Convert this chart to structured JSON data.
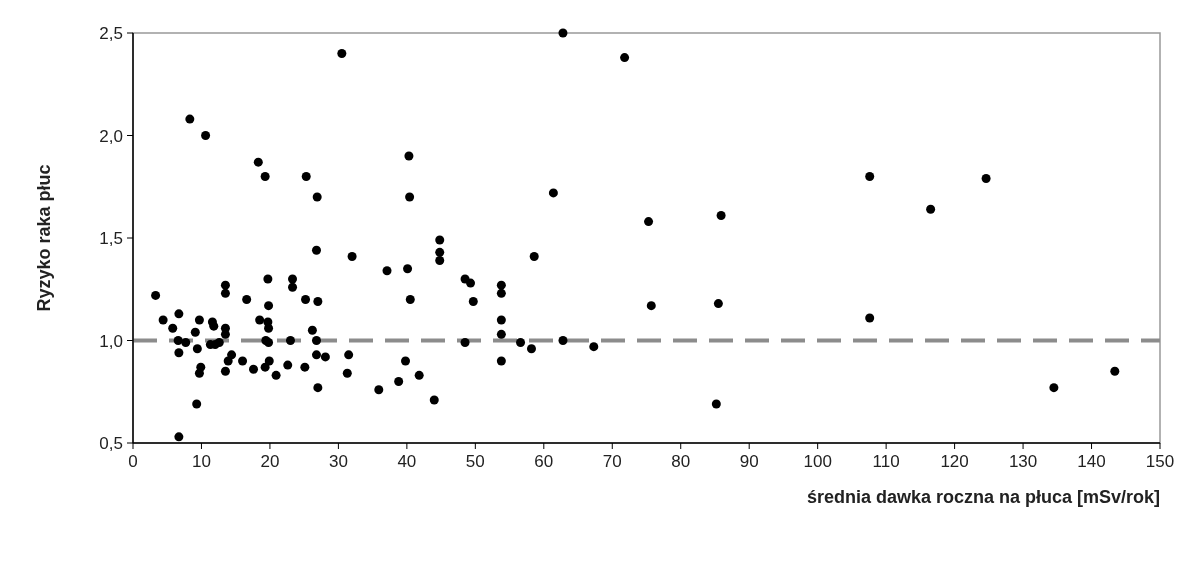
{
  "chart_data": {
    "type": "scatter",
    "xlabel": "średnia dawka roczna na płuca [mSv/rok]",
    "ylabel": "Ryzyko raka płuc",
    "x": [
      3.3,
      4.4,
      5.8,
      6.7,
      6.6,
      7.7,
      6.7,
      6.7,
      8.3,
      9.1,
      9.7,
      9.4,
      9.9,
      9.7,
      9.3,
      10.6,
      11.6,
      11.8,
      11.3,
      12.0,
      12.6,
      13.5,
      13.5,
      13.5,
      13.5,
      14.4,
      13.9,
      13.5,
      16.0,
      16.6,
      17.6,
      18.3,
      19.3,
      18.5,
      19.7,
      19.8,
      19.7,
      19.8,
      19.4,
      19.8,
      19.9,
      19.3,
      20.9,
      22.6,
      23.0,
      23.3,
      23.3,
      25.1,
      25.2,
      25.3,
      26.2,
      26.9,
      26.8,
      27.0,
      26.8,
      26.8,
      28.1,
      27.0,
      30.5,
      32.0,
      31.5,
      31.3,
      35.9,
      37.1,
      38.8,
      39.8,
      40.3,
      40.4,
      40.1,
      40.5,
      41.8,
      44.0,
      44.8,
      44.8,
      44.8,
      48.5,
      49.3,
      49.7,
      48.5,
      53.8,
      53.8,
      53.8,
      53.8,
      53.8,
      56.6,
      58.2,
      58.6,
      61.4,
      62.8,
      62.8,
      67.3,
      71.8,
      75.3,
      75.7,
      85.9,
      85.5,
      85.2,
      107.6,
      107.6,
      116.5,
      124.6,
      134.5,
      143.4
    ],
    "values": [
      1.22,
      1.1,
      1.06,
      1.13,
      1.0,
      0.99,
      0.94,
      0.53,
      2.08,
      1.04,
      1.1,
      0.96,
      0.87,
      0.84,
      0.69,
      2.0,
      1.09,
      1.07,
      0.98,
      0.98,
      0.99,
      1.27,
      1.23,
      1.06,
      1.03,
      0.93,
      0.9,
      0.85,
      0.9,
      1.2,
      0.86,
      1.87,
      1.8,
      1.1,
      1.3,
      1.17,
      1.09,
      1.06,
      1.0,
      0.99,
      0.9,
      0.87,
      0.83,
      0.88,
      1.0,
      1.3,
      1.26,
      0.87,
      1.2,
      1.8,
      1.05,
      1.7,
      1.44,
      1.19,
      1.0,
      0.93,
      0.92,
      0.77,
      2.4,
      1.41,
      0.93,
      0.84,
      0.76,
      1.34,
      0.8,
      0.9,
      1.9,
      1.7,
      1.35,
      1.2,
      0.83,
      0.71,
      1.49,
      1.43,
      1.39,
      1.3,
      1.28,
      1.19,
      0.99,
      1.27,
      1.23,
      1.1,
      1.03,
      0.9,
      0.99,
      0.96,
      1.41,
      1.72,
      2.5,
      1.0,
      0.97,
      2.38,
      1.58,
      1.17,
      1.61,
      1.18,
      0.69,
      1.8,
      1.11,
      1.64,
      1.79,
      0.77,
      0.85
    ],
    "color": "#000000",
    "marker": "circle",
    "xlim": [
      0,
      150
    ],
    "xticks": [
      0,
      10,
      20,
      30,
      40,
      50,
      60,
      70,
      80,
      90,
      100,
      110,
      120,
      130,
      140,
      150
    ],
    "ylim": [
      0.5,
      2.5
    ],
    "yticks": [
      {
        "value": 0.5,
        "label": "0,5"
      },
      {
        "value": 1.0,
        "label": "1,0"
      },
      {
        "value": 1.5,
        "label": "1,5"
      },
      {
        "value": 2.0,
        "label": "2,0"
      },
      {
        "value": 2.5,
        "label": "2,5"
      }
    ],
    "ref_lines": [
      {
        "axis": "y",
        "value": 1.0,
        "color": "#8c8c8c",
        "line_style": "dashed"
      }
    ],
    "grid": false
  }
}
